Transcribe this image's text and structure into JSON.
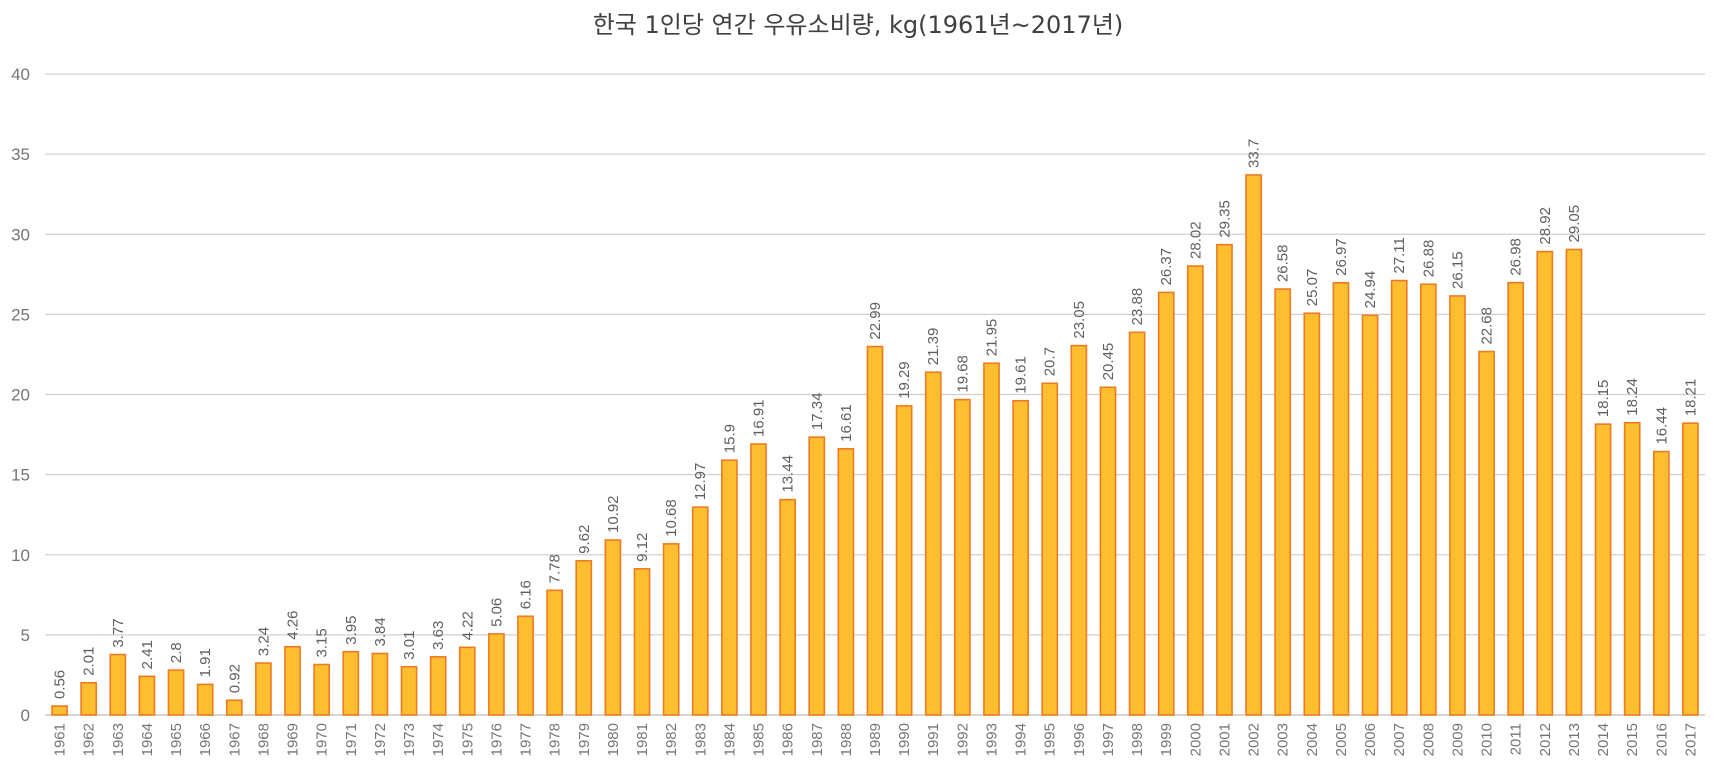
{
  "chart_data": {
    "type": "bar",
    "title": "한국 1인당 연간 우유소비량, kg(1961년~2017년)",
    "xlabel": "",
    "ylabel": "",
    "ylim": [
      0,
      40
    ],
    "yticks": [
      0,
      5,
      10,
      15,
      20,
      25,
      30,
      35,
      40
    ],
    "grid": true,
    "legend": "none",
    "colors": {
      "bar_fill": "#FDBF2F",
      "bar_stroke": "#EE7B22",
      "grid": "#D0D0D0"
    },
    "categories": [
      "1961",
      "1962",
      "1963",
      "1964",
      "1965",
      "1966",
      "1967",
      "1968",
      "1969",
      "1970",
      "1971",
      "1972",
      "1973",
      "1974",
      "1975",
      "1976",
      "1977",
      "1978",
      "1979",
      "1980",
      "1981",
      "1982",
      "1983",
      "1984",
      "1985",
      "1986",
      "1987",
      "1988",
      "1989",
      "1990",
      "1991",
      "1992",
      "1993",
      "1994",
      "1995",
      "1996",
      "1997",
      "1998",
      "1999",
      "2000",
      "2001",
      "2002",
      "2003",
      "2004",
      "2005",
      "2006",
      "2007",
      "2008",
      "2009",
      "2010",
      "2011",
      "2012",
      "2013",
      "2014",
      "2015",
      "2016",
      "2017"
    ],
    "values": [
      0.56,
      2.01,
      3.77,
      2.41,
      2.8,
      1.91,
      0.92,
      3.24,
      4.26,
      3.15,
      3.95,
      3.84,
      3.01,
      3.63,
      4.22,
      5.06,
      6.16,
      7.78,
      9.62,
      10.92,
      9.12,
      10.68,
      12.97,
      15.9,
      16.91,
      13.44,
      17.34,
      16.61,
      22.99,
      19.29,
      21.39,
      19.68,
      21.95,
      19.61,
      20.7,
      23.05,
      20.45,
      23.88,
      26.37,
      28.02,
      29.35,
      33.7,
      26.58,
      25.07,
      26.97,
      24.94,
      27.11,
      26.88,
      26.15,
      22.68,
      26.98,
      28.92,
      29.05,
      18.15,
      18.24,
      16.44,
      18.21
    ]
  }
}
